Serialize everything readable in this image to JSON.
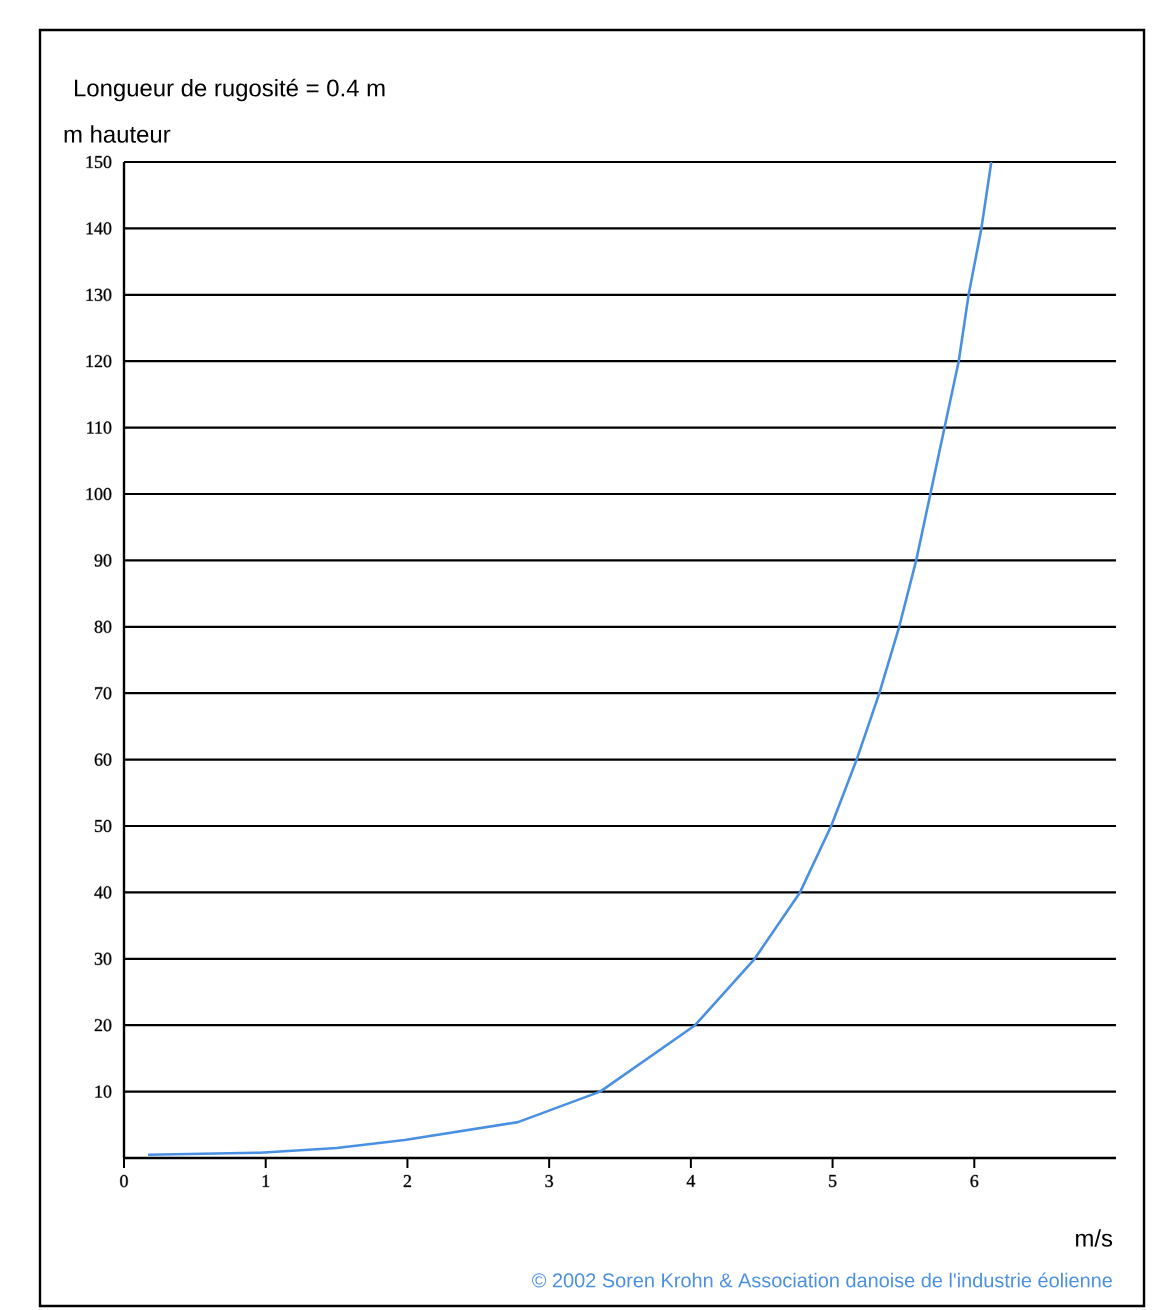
{
  "chart_data": {
    "type": "line",
    "title": "Longueur de rugosité = 0.4 m",
    "ylabel": "m hauteur",
    "xlabel": "m/s",
    "annotations": [
      "© 2002 Soren Krohn & Association danoise de l'industrie éolienne"
    ],
    "series": [
      {
        "color": "#4a90e2",
        "x": [
          0.17,
          0.96,
          1.5,
          1.98,
          2.78,
          3.36,
          4.03,
          4.45,
          4.77,
          4.99,
          5.17,
          5.33,
          5.47,
          5.59,
          5.69,
          5.79,
          5.89,
          5.96,
          6.05,
          6.12
        ],
        "values": [
          0.5,
          0.8,
          1.5,
          2.7,
          5.4,
          10,
          20,
          30,
          40,
          50,
          60,
          70,
          80,
          90,
          100,
          110,
          120,
          130,
          140,
          150
        ]
      }
    ],
    "xlim": [
      0,
      7
    ],
    "xticks": [
      0,
      1,
      2,
      3,
      4,
      5,
      6
    ],
    "ylim": [
      0,
      150
    ],
    "yticks": [
      10,
      20,
      30,
      40,
      50,
      60,
      70,
      80,
      90,
      100,
      110,
      120,
      130,
      140,
      150
    ],
    "grid": "y"
  }
}
